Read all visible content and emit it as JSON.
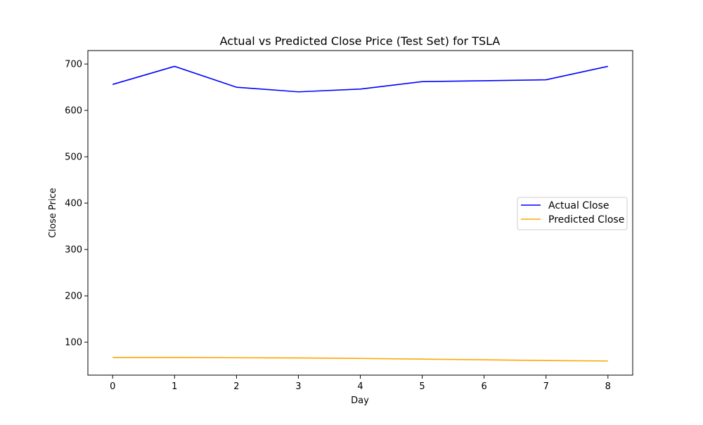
{
  "chart_data": {
    "type": "line",
    "title": "Actual vs Predicted Close Price (Test Set) for TSLA",
    "xlabel": "Day",
    "ylabel": "Close Price",
    "x": [
      0,
      1,
      2,
      3,
      4,
      5,
      6,
      7,
      8
    ],
    "xlim": [
      -0.4,
      8.4
    ],
    "ylim": [
      29,
      729
    ],
    "xticks": [
      0,
      1,
      2,
      3,
      4,
      5,
      6,
      7,
      8
    ],
    "yticks": [
      100,
      200,
      300,
      400,
      500,
      600,
      700
    ],
    "grid": false,
    "legend_position": "center-right",
    "series": [
      {
        "name": "Actual Close",
        "color": "#0000ff",
        "values": [
          656,
          695,
          650,
          640,
          646,
          662,
          664,
          666,
          695
        ]
      },
      {
        "name": "Predicted Close",
        "color": "#ffa500",
        "values": [
          67,
          67,
          66.5,
          66,
          65,
          63.5,
          62,
          60.5,
          59.5
        ]
      }
    ]
  }
}
